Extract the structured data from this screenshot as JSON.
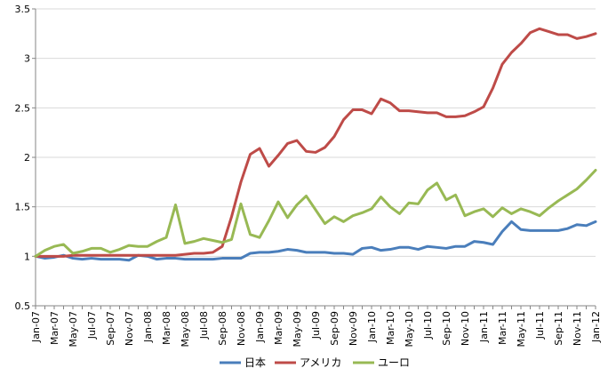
{
  "chart_data": {
    "type": "line",
    "x": [
      "Jan-07",
      "Feb-07",
      "Mar-07",
      "Apr-07",
      "May-07",
      "Jun-07",
      "Jul-07",
      "Aug-07",
      "Sep-07",
      "Oct-07",
      "Nov-07",
      "Dec-07",
      "Jan-08",
      "Feb-08",
      "Mar-08",
      "Apr-08",
      "May-08",
      "Jun-08",
      "Jul-08",
      "Aug-08",
      "Sep-08",
      "Oct-08",
      "Nov-08",
      "Dec-08",
      "Jan-09",
      "Feb-09",
      "Mar-09",
      "Apr-09",
      "May-09",
      "Jun-09",
      "Jul-09",
      "Aug-09",
      "Sep-09",
      "Oct-09",
      "Nov-09",
      "Dec-09",
      "Jan-10",
      "Feb-10",
      "Mar-10",
      "Apr-10",
      "May-10",
      "Jun-10",
      "Jul-10",
      "Aug-10",
      "Sep-10",
      "Oct-10",
      "Nov-10",
      "Dec-10",
      "Jan-11",
      "Feb-11",
      "Mar-11",
      "Apr-11",
      "May-11",
      "Jun-11",
      "Jul-11",
      "Aug-11",
      "Sep-11",
      "Oct-11",
      "Nov-11",
      "Dec-11",
      "Jan-12"
    ],
    "x_tick_labels": [
      "Jan-07",
      "Mar-07",
      "May-07",
      "Jul-07",
      "Sep-07",
      "Nov-07",
      "Jan-08",
      "Mar-08",
      "May-08",
      "Jul-08",
      "Sep-08",
      "Nov-08",
      "Jan-09",
      "Mar-09",
      "May-09",
      "Jul-09",
      "Sep-09",
      "Nov-09",
      "Jan-10",
      "Mar-10",
      "May-10",
      "Jul-10",
      "Sep-10",
      "Nov-10",
      "Jan-11",
      "Mar-11",
      "May-11",
      "Jul-11",
      "Sep-11",
      "Nov-11",
      "Jan-12"
    ],
    "y_tick_labels": [
      "0.5",
      "1",
      "1.5",
      "2",
      "2.5",
      "3",
      "3.5"
    ],
    "ylim": [
      0.5,
      3.5
    ],
    "y_ticks": [
      0.5,
      1,
      1.5,
      2,
      2.5,
      3,
      3.5
    ],
    "grid": true,
    "legend_position": "bottom",
    "series": [
      {
        "name": "日本",
        "color": "#4a7ebb",
        "values": [
          1.0,
          0.98,
          0.99,
          1.01,
          0.98,
          0.97,
          0.98,
          0.97,
          0.97,
          0.97,
          0.96,
          1.01,
          1.0,
          0.97,
          0.98,
          0.98,
          0.97,
          0.97,
          0.97,
          0.97,
          0.98,
          0.98,
          0.98,
          1.03,
          1.04,
          1.04,
          1.05,
          1.07,
          1.06,
          1.04,
          1.04,
          1.04,
          1.03,
          1.03,
          1.02,
          1.08,
          1.09,
          1.06,
          1.07,
          1.09,
          1.09,
          1.07,
          1.1,
          1.09,
          1.08,
          1.1,
          1.1,
          1.15,
          1.14,
          1.12,
          1.25,
          1.35,
          1.27,
          1.26,
          1.26,
          1.26,
          1.26,
          1.28,
          1.32,
          1.31,
          1.35
        ]
      },
      {
        "name": "アメリカ",
        "color": "#be4b48",
        "values": [
          1.0,
          1.0,
          1.0,
          1.0,
          1.01,
          1.01,
          1.01,
          1.01,
          1.01,
          1.01,
          1.01,
          1.01,
          1.01,
          1.01,
          1.01,
          1.01,
          1.02,
          1.03,
          1.03,
          1.04,
          1.1,
          1.4,
          1.75,
          2.03,
          2.09,
          1.91,
          2.02,
          2.14,
          2.17,
          2.06,
          2.05,
          2.1,
          2.21,
          2.38,
          2.48,
          2.48,
          2.44,
          2.59,
          2.55,
          2.47,
          2.47,
          2.46,
          2.45,
          2.45,
          2.41,
          2.41,
          2.42,
          2.46,
          2.51,
          2.7,
          2.94,
          3.06,
          3.15,
          3.26,
          3.3,
          3.27,
          3.24,
          3.24,
          3.2,
          3.22,
          3.25
        ]
      },
      {
        "name": "ユーロ",
        "color": "#98b954",
        "values": [
          1.0,
          1.06,
          1.1,
          1.12,
          1.03,
          1.05,
          1.08,
          1.08,
          1.04,
          1.07,
          1.11,
          1.1,
          1.1,
          1.15,
          1.19,
          1.52,
          1.13,
          1.15,
          1.18,
          1.16,
          1.14,
          1.17,
          1.53,
          1.22,
          1.19,
          1.36,
          1.55,
          1.39,
          1.52,
          1.61,
          1.47,
          1.33,
          1.4,
          1.35,
          1.41,
          1.44,
          1.48,
          1.6,
          1.5,
          1.43,
          1.54,
          1.53,
          1.67,
          1.74,
          1.57,
          1.62,
          1.41,
          1.45,
          1.48,
          1.4,
          1.49,
          1.43,
          1.48,
          1.45,
          1.41,
          1.49,
          1.56,
          1.62,
          1.68,
          1.77,
          1.87
        ]
      }
    ]
  }
}
